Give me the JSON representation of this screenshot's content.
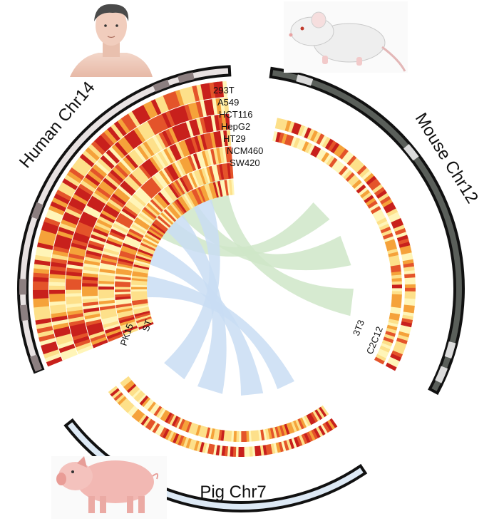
{
  "chromosomes": [
    {
      "id": "human",
      "label": "Human Chr14",
      "icon": "human-head-icon"
    },
    {
      "id": "mouse",
      "label": "Mouse Chr12",
      "icon": "mouse-icon"
    },
    {
      "id": "pig",
      "label": "Pig Chr7",
      "icon": "pig-icon"
    }
  ],
  "tracks": {
    "human": [
      "293T",
      "A549",
      "HCT116",
      "HepG2",
      "HT29",
      "NCM460",
      "SW420"
    ],
    "mouse": [
      "3T3",
      "C2C12"
    ],
    "pig": [
      "PK15",
      "ST"
    ]
  },
  "colors": {
    "human_band": "#e8e2e2",
    "mouse_band": "#5a5f5a",
    "pig_band": "#dde9f5",
    "link_human_mouse": "#cfe6c8",
    "link_human_pig": "#c9ddf3",
    "heat_low": "#fff5b8",
    "heat_mid": "#f5a23a",
    "heat_high": "#c8201c"
  }
}
